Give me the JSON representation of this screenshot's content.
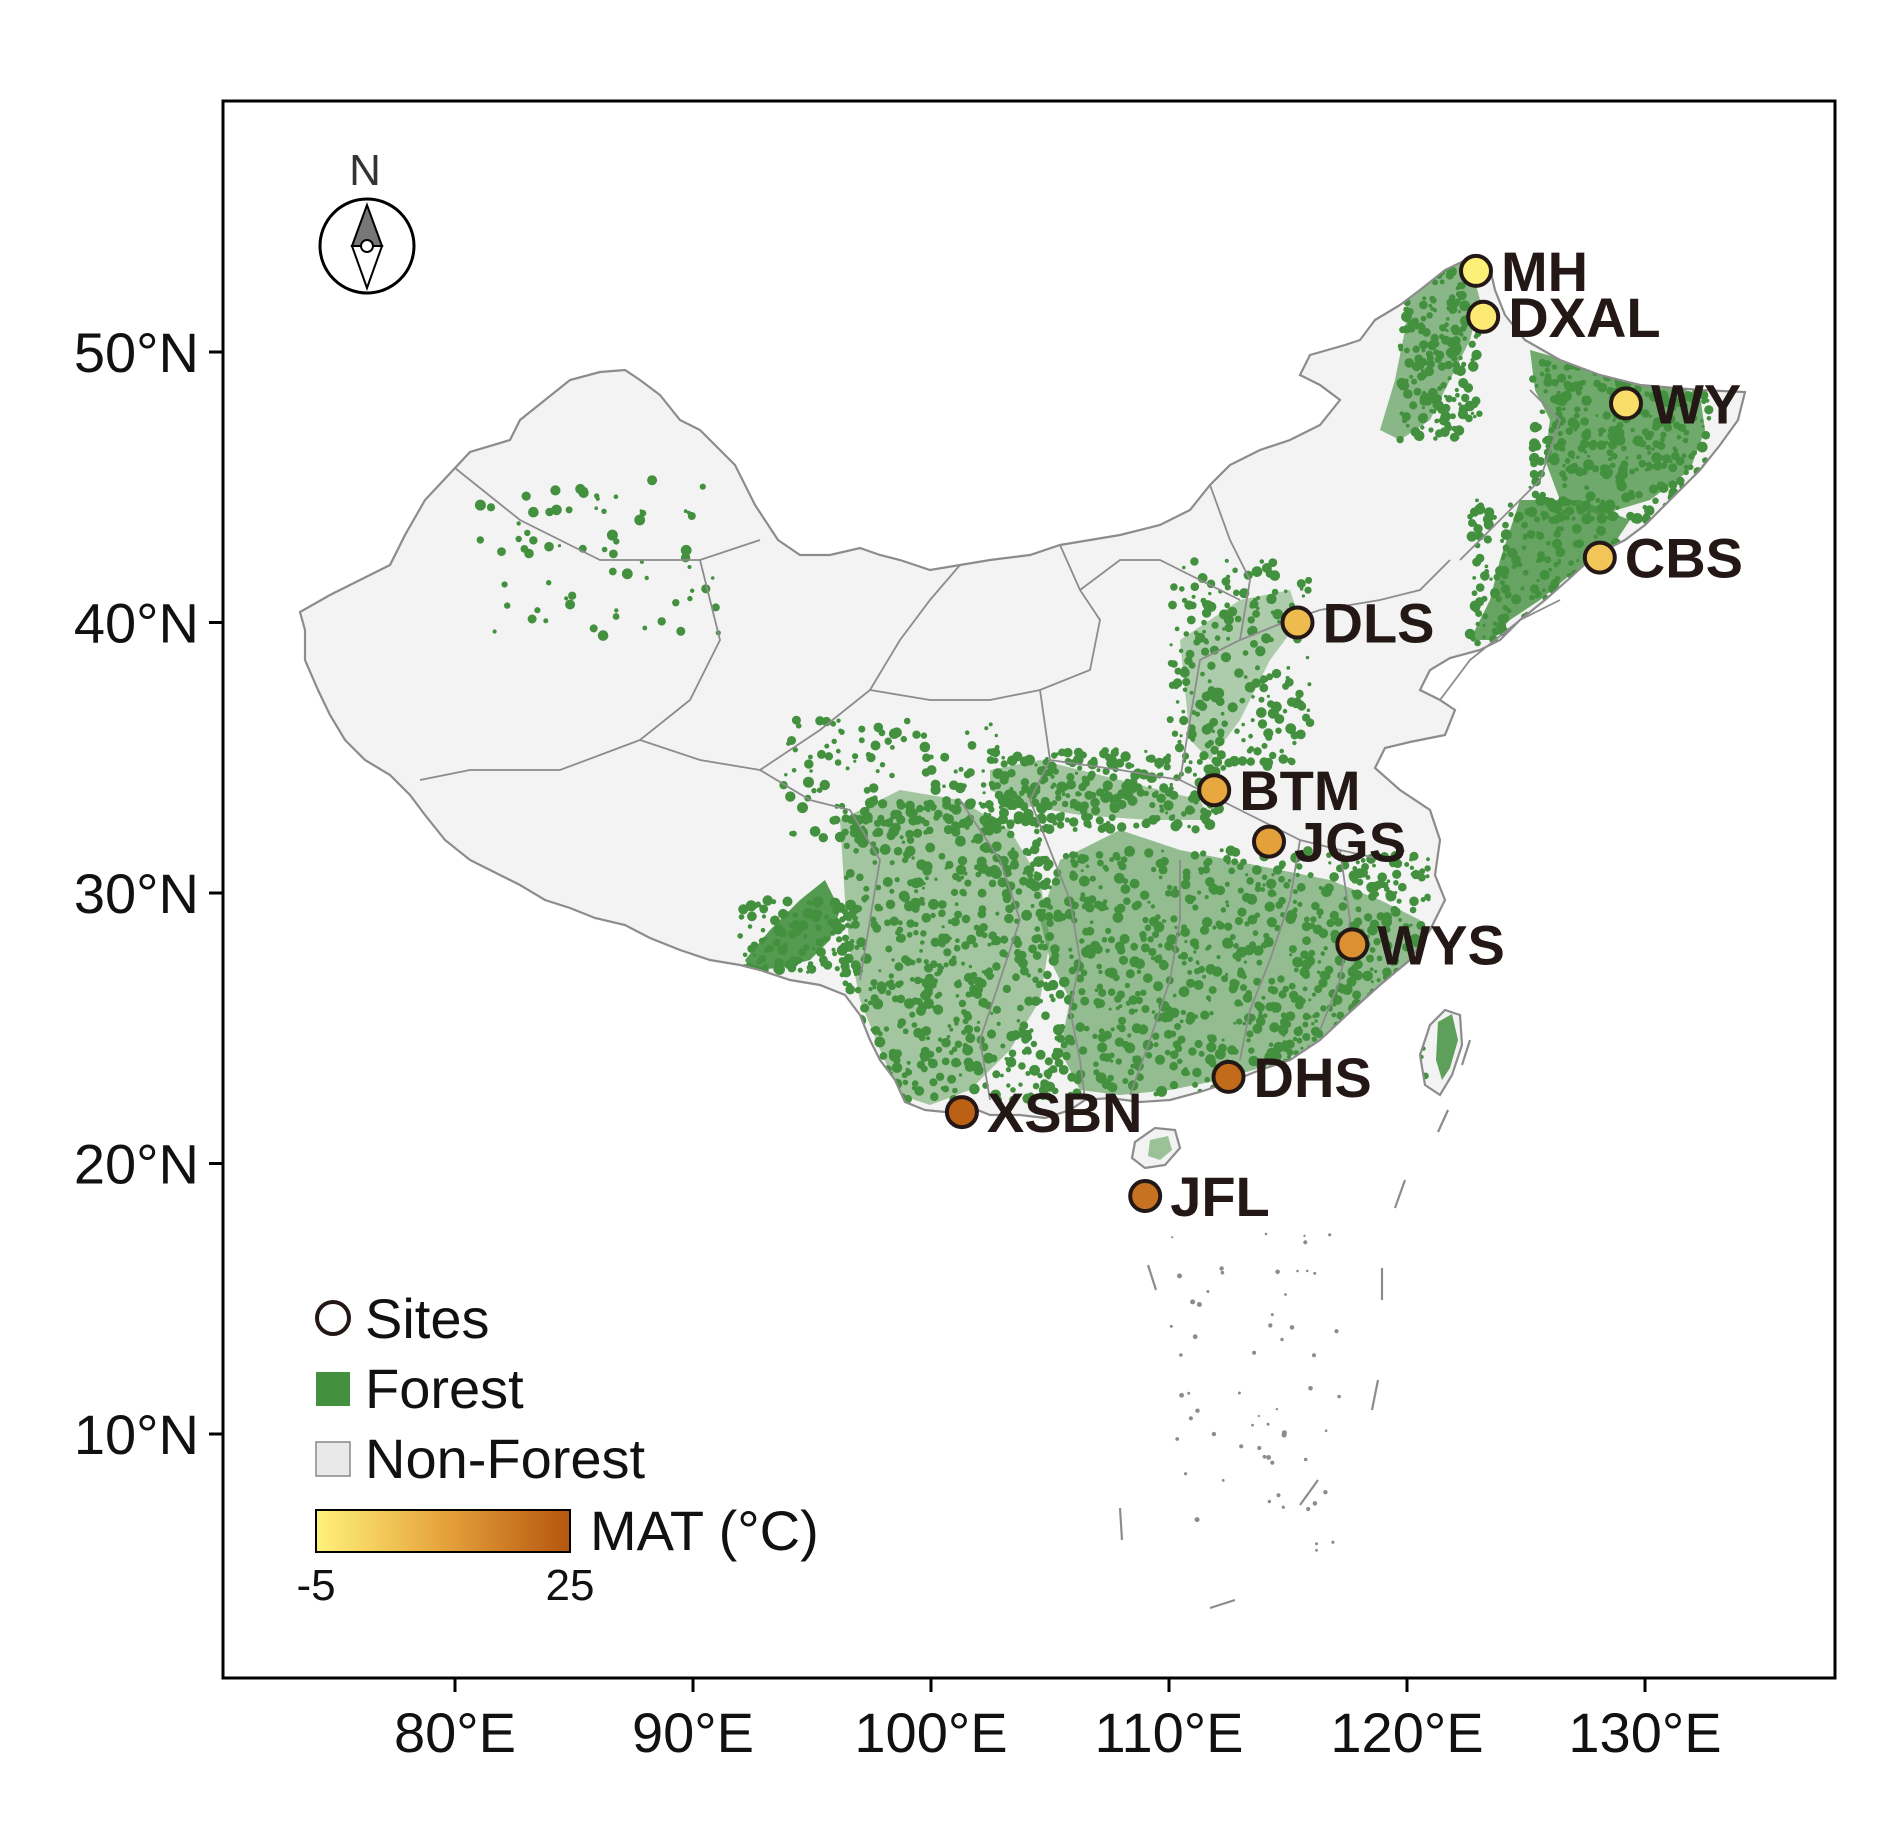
{
  "axes": {
    "x_ticks": [
      "80°E",
      "90°E",
      "100°E",
      "110°E",
      "120°E",
      "130°E"
    ],
    "y_ticks": [
      "50°N",
      "40°N",
      "30°N",
      "20°N",
      "10°N"
    ]
  },
  "north_arrow": {
    "label": "N",
    "icon": "compass-rose-icon"
  },
  "sites": [
    {
      "code": "MH",
      "lon": 122.9,
      "lat": 53.0,
      "mat": -4.5
    },
    {
      "code": "DXAL",
      "lon": 123.2,
      "lat": 51.3,
      "mat": -3.5
    },
    {
      "code": "WY",
      "lon": 129.2,
      "lat": 48.1,
      "mat": -1.0
    },
    {
      "code": "CBS",
      "lon": 128.1,
      "lat": 42.4,
      "mat": 3.5
    },
    {
      "code": "DLS",
      "lon": 115.4,
      "lat": 40.0,
      "mat": 5.5
    },
    {
      "code": "BTM",
      "lon": 111.9,
      "lat": 33.8,
      "mat": 9.0
    },
    {
      "code": "JGS",
      "lon": 114.2,
      "lat": 31.9,
      "mat": 10.5
    },
    {
      "code": "WYS",
      "lon": 117.7,
      "lat": 28.1,
      "mat": 13.5
    },
    {
      "code": "DHS",
      "lon": 112.5,
      "lat": 23.2,
      "mat": 21.0
    },
    {
      "code": "XSBN",
      "lon": 101.3,
      "lat": 21.9,
      "mat": 23.0
    },
    {
      "code": "JFL",
      "lon": 109.0,
      "lat": 18.8,
      "mat": 19.5
    }
  ],
  "legend": {
    "sites_label": "Sites",
    "forest_label": "Forest",
    "nonforest_label": "Non-Forest",
    "mat_label": "MAT (°C)",
    "mat_min_label": "-5",
    "mat_max_label": "25",
    "mat_min": -5,
    "mat_max": 25
  },
  "colors": {
    "forest": "#43903f",
    "non_forest": "#f3f3f3",
    "boundary": "#8c8c8c",
    "mat_low": "#fff27a",
    "mat_mid": "#e6a33c",
    "mat_high": "#b5560f"
  }
}
